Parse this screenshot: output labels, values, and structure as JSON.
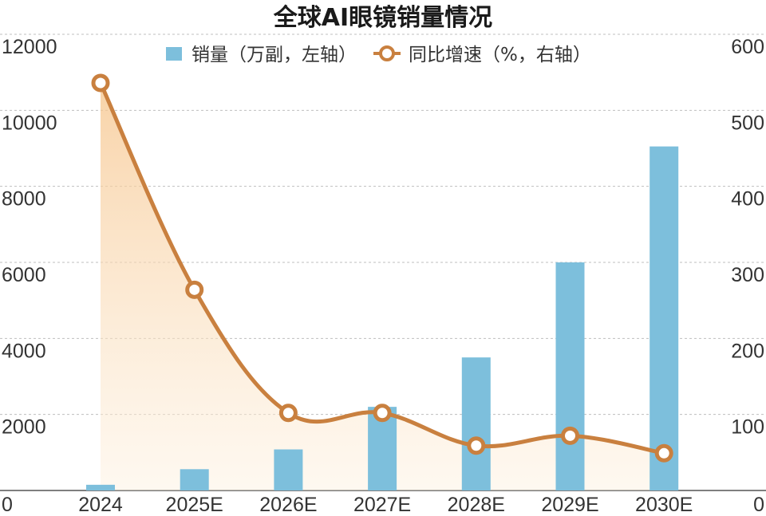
{
  "chart_data": {
    "type": "bar",
    "title": "全球AI眼镜销量情况",
    "categories": [
      "2024",
      "2025E",
      "2026E",
      "2027E",
      "2028E",
      "2029E",
      "2030E"
    ],
    "series": [
      {
        "name": "销量（万副，左轴）",
        "type": "bar",
        "axis": "left",
        "color": "#7dbfdc",
        "values": [
          150,
          560,
          1080,
          2200,
          3500,
          6000,
          9050
        ]
      },
      {
        "name": "同比增速（%，右轴）",
        "type": "line",
        "axis": "right",
        "color": "#c9803f",
        "values": [
          536,
          264,
          102,
          102,
          59,
          72,
          49
        ]
      }
    ],
    "y_left": {
      "min": 0,
      "max": 12000,
      "ticks": [
        "0",
        "2000",
        "4000",
        "6000",
        "8000",
        "10000",
        "12000"
      ]
    },
    "y_right": {
      "min": 0,
      "max": 600,
      "ticks": [
        "0",
        "100",
        "200",
        "300",
        "400",
        "500",
        "600"
      ]
    },
    "grid": true,
    "legend_position": "top"
  }
}
